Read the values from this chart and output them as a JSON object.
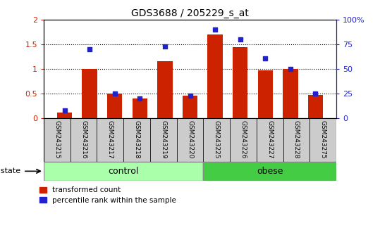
{
  "title": "GDS3688 / 205229_s_at",
  "samples": [
    "GSM243215",
    "GSM243216",
    "GSM243217",
    "GSM243218",
    "GSM243219",
    "GSM243220",
    "GSM243225",
    "GSM243226",
    "GSM243227",
    "GSM243228",
    "GSM243275"
  ],
  "transformed_count": [
    0.12,
    1.01,
    0.5,
    0.4,
    1.16,
    0.46,
    1.7,
    1.44,
    0.97,
    1.0,
    0.48
  ],
  "percentile_rank": [
    8,
    70,
    25,
    20,
    73,
    23,
    90,
    80,
    61,
    50,
    25
  ],
  "n_control": 6,
  "n_obese": 5,
  "bar_color": "#cc2200",
  "dot_color": "#2222cc",
  "control_color": "#aaffaa",
  "obese_color": "#44cc44",
  "sample_bg_color": "#cccccc",
  "plot_bg_color": "#ffffff",
  "ylim_left": [
    0,
    2
  ],
  "ylim_right": [
    0,
    100
  ],
  "yticks_left": [
    0,
    0.5,
    1.0,
    1.5,
    2.0
  ],
  "yticks_right": [
    0,
    25,
    50,
    75,
    100
  ],
  "ytick_labels_left": [
    "0",
    "0.5",
    "1",
    "1.5",
    "2"
  ],
  "ytick_labels_right": [
    "0",
    "25",
    "50",
    "75",
    "100%"
  ]
}
